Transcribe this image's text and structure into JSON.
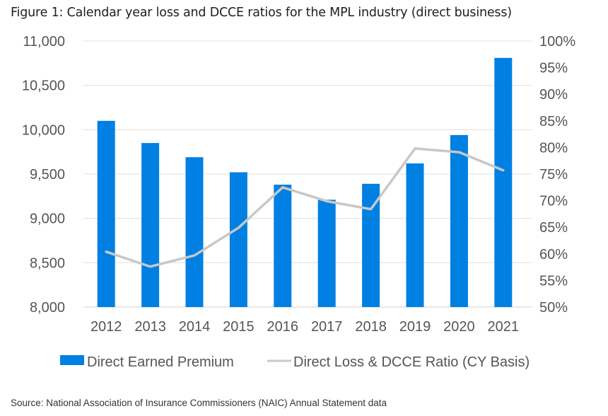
{
  "title": "Figure 1: Calendar year loss and DCCE ratios for the MPL industry (direct business)",
  "source": "Source: National Association of Insurance Commissioners (NAIC) Annual Statement data",
  "colors": {
    "bar": "#0080E2",
    "line": "#C8C8C8",
    "grid": "#E6E6E6",
    "tick_text": "#555555"
  },
  "chart_data": {
    "type": "bar",
    "title": "Figure 1: Calendar year loss and DCCE ratios for the MPL industry (direct business)",
    "xlabel": "",
    "ylabel": "",
    "ylabel_right": "",
    "categories": [
      "2012",
      "2013",
      "2014",
      "2015",
      "2016",
      "2017",
      "2018",
      "2019",
      "2020",
      "2021"
    ],
    "series": [
      {
        "name": "Direct Earned Premium",
        "type": "bar",
        "axis": "left",
        "values": [
          10100,
          9850,
          9690,
          9520,
          9380,
          9210,
          9390,
          9620,
          9940,
          10810
        ]
      },
      {
        "name": "Direct Loss & DCCE Ratio (CY Basis)",
        "type": "line",
        "axis": "right",
        "values": [
          60.4,
          57.6,
          59.7,
          64.9,
          72.5,
          69.9,
          68.4,
          79.8,
          79.1,
          75.7
        ]
      }
    ],
    "ylim": [
      8000,
      11000
    ],
    "yticks": [
      8000,
      8500,
      9000,
      9500,
      10000,
      10500,
      11000
    ],
    "ytick_labels": [
      "8,000",
      "8,500",
      "9,000",
      "9,500",
      "10,000",
      "10,500",
      "11,000"
    ],
    "ylim_right": [
      50,
      100
    ],
    "yticks_right": [
      50,
      55,
      60,
      65,
      70,
      75,
      80,
      85,
      90,
      95,
      100
    ],
    "ytick_labels_right": [
      "50%",
      "55%",
      "60%",
      "65%",
      "70%",
      "75%",
      "80%",
      "85%",
      "90%",
      "95%",
      "100%"
    ],
    "grid": true,
    "legend": [
      "Direct Earned Premium",
      "Direct Loss & DCCE Ratio (CY Basis)"
    ],
    "legend_position": "bottom"
  }
}
